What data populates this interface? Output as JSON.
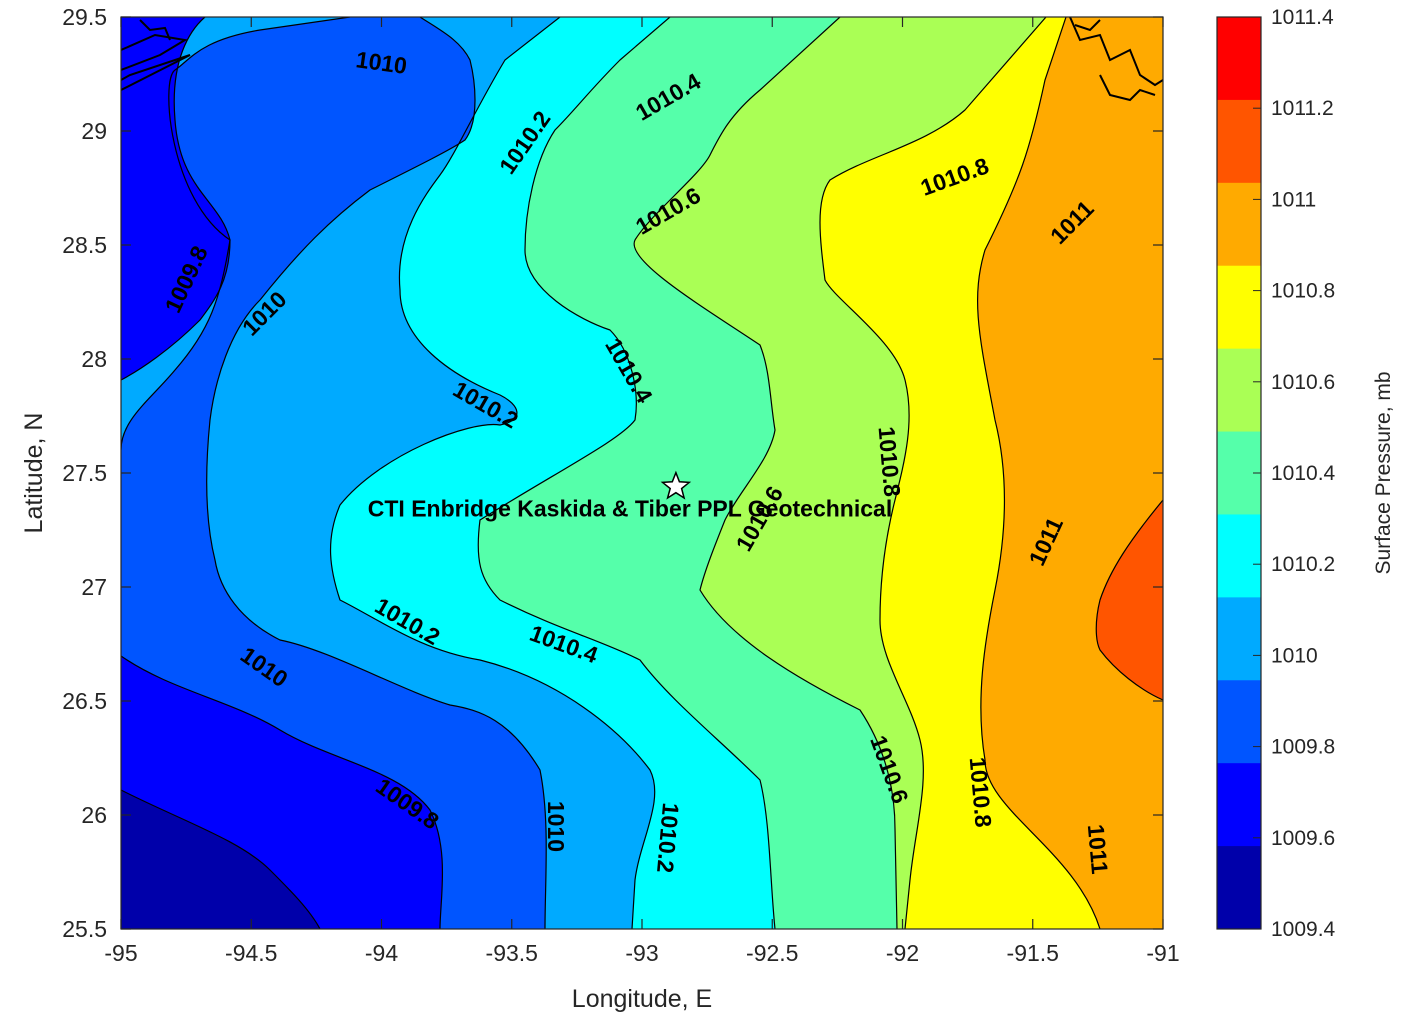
{
  "chart_data": {
    "type": "contour",
    "xlabel": "Longitude, E",
    "ylabel": "Latitude, N",
    "xlim": [
      -95,
      -91
    ],
    "ylim": [
      25.5,
      29.5
    ],
    "xticks": [
      "-95",
      "-94.5",
      "-94",
      "-93.5",
      "-93",
      "-92.5",
      "-92",
      "-91.5",
      "-91"
    ],
    "yticks": [
      "25.5",
      "26",
      "26.5",
      "27",
      "27.5",
      "28",
      "28.5",
      "29",
      "29.5"
    ],
    "colorbar": {
      "label": "Surface Pressure, mb",
      "ticks": [
        "1009.4",
        "1009.6",
        "1009.8",
        "1010",
        "1010.2",
        "1010.4",
        "1010.6",
        "1010.8",
        "1011",
        "1011.2",
        "1011.4"
      ],
      "levels": [
        1009.4,
        1009.6,
        1009.8,
        1010.0,
        1010.2,
        1010.4,
        1010.6,
        1010.8,
        1011.0,
        1011.2,
        1011.4
      ],
      "colors": [
        "#0000aa",
        "#0000ff",
        "#0055ff",
        "#00aaff",
        "#00ffff",
        "#55ffaa",
        "#aaff55",
        "#ffff00",
        "#ffaa00",
        "#ff5500",
        "#ff0000"
      ]
    },
    "contour_labels": [
      {
        "text": "1010",
        "lon": -94.0,
        "lat": 29.3
      },
      {
        "text": "1010.4",
        "lon": -92.9,
        "lat": 29.15
      },
      {
        "text": "1010.2",
        "lon": -93.45,
        "lat": 28.95
      },
      {
        "text": "1010.8",
        "lon": -91.8,
        "lat": 28.8
      },
      {
        "text": "1010.6",
        "lon": -92.9,
        "lat": 28.65
      },
      {
        "text": "1011",
        "lon": -91.35,
        "lat": 28.6
      },
      {
        "text": "1009.8",
        "lon": -94.75,
        "lat": 28.35
      },
      {
        "text": "1010",
        "lon": -94.45,
        "lat": 28.2
      },
      {
        "text": "1010.4",
        "lon": -93.05,
        "lat": 27.95
      },
      {
        "text": "1010.2",
        "lon": -93.6,
        "lat": 27.8
      },
      {
        "text": "1010.8",
        "lon": -92.05,
        "lat": 27.55
      },
      {
        "text": "1010.6",
        "lon": -92.55,
        "lat": 27.3
      },
      {
        "text": "1011",
        "lon": -91.45,
        "lat": 27.2
      },
      {
        "text": "1010.2",
        "lon": -93.9,
        "lat": 26.85
      },
      {
        "text": "1010.4",
        "lon": -93.3,
        "lat": 26.75
      },
      {
        "text": "1010",
        "lon": -94.45,
        "lat": 26.65
      },
      {
        "text": "1010.6",
        "lon": -92.05,
        "lat": 26.2
      },
      {
        "text": "1010.8",
        "lon": -91.7,
        "lat": 26.1
      },
      {
        "text": "1009.8",
        "lon": -93.9,
        "lat": 26.05
      },
      {
        "text": "1010",
        "lon": -93.33,
        "lat": 25.95
      },
      {
        "text": "1010.2",
        "lon": -92.9,
        "lat": 25.9
      },
      {
        "text": "1011",
        "lon": -91.25,
        "lat": 25.85
      }
    ],
    "site": {
      "name": "CTI Enbridge  Kaskida & Tiber PPL Geotechnical",
      "lon": -92.87,
      "lat": 27.44
    }
  }
}
